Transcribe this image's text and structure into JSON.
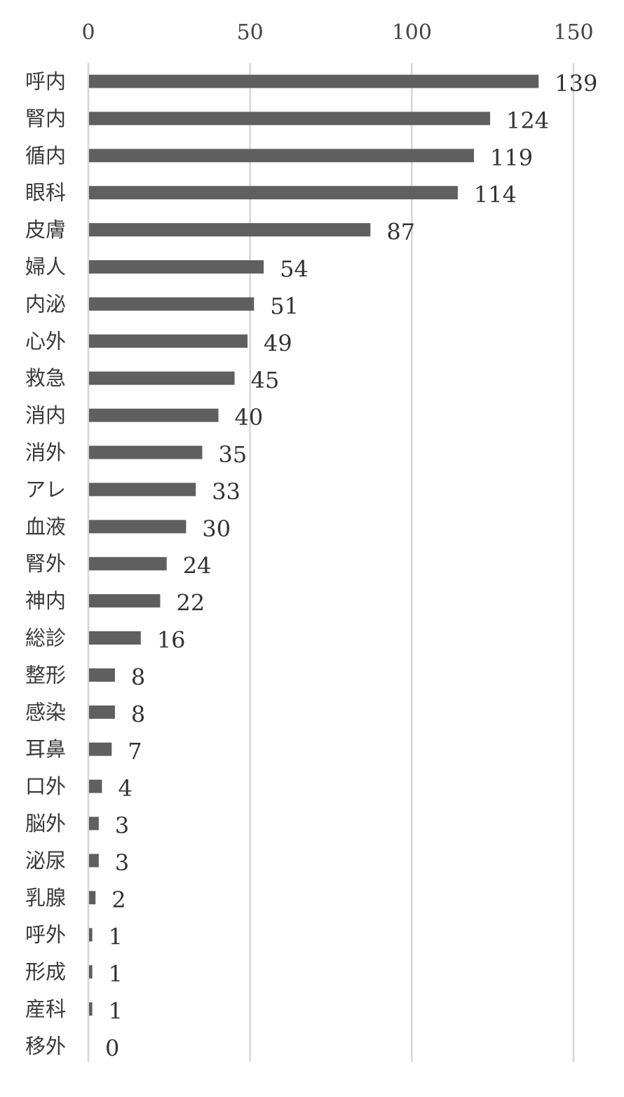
{
  "chart_data": {
    "type": "bar",
    "orientation": "horizontal",
    "title": "",
    "xlabel": "",
    "ylabel": "",
    "xlim": [
      0,
      150
    ],
    "x_ticks": [
      0,
      50,
      100,
      150
    ],
    "x_tick_labels": [
      "0",
      "50",
      "100",
      "150"
    ],
    "x_axis_position": "top",
    "grid": true,
    "legend": "none",
    "categories": [
      "呼内",
      "腎内",
      "循内",
      "眼科",
      "皮膚",
      "婦人",
      "内泌",
      "心外",
      "救急",
      "消内",
      "消外",
      "アレ",
      "血液",
      "腎外",
      "神内",
      "総診",
      "整形",
      "感染",
      "耳鼻",
      "口外",
      "脳外",
      "泌尿",
      "乳腺",
      "呼外",
      "形成",
      "産科",
      "移外"
    ],
    "values": [
      139,
      124,
      119,
      114,
      87,
      54,
      51,
      49,
      45,
      40,
      35,
      33,
      30,
      24,
      22,
      16,
      8,
      8,
      7,
      4,
      3,
      3,
      2,
      1,
      1,
      1,
      0
    ],
    "value_labels": [
      "139",
      "124",
      "119",
      "114",
      "87",
      "54",
      "51",
      "49",
      "45",
      "40",
      "35",
      "33",
      "30",
      "24",
      "22",
      "16",
      "8",
      "8",
      "7",
      "4",
      "3",
      "3",
      "2",
      "1",
      "1",
      "1",
      "0"
    ],
    "colors": {
      "bar": "#5f5f5f",
      "grid": "#d6d6d6",
      "text": "#3a3a3a"
    }
  }
}
